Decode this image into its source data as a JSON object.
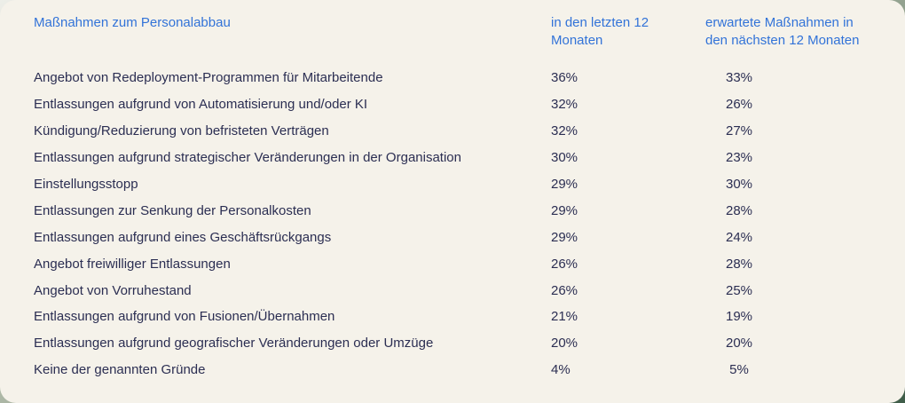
{
  "table": {
    "header": {
      "label": "Maßnahmen zum Personalabbau",
      "col1": "in den letzten 12 Monaten",
      "col2": "erwartete Maßnahmen in den nächsten 12 Monaten"
    }
  },
  "chart_data": {
    "type": "table",
    "title": "Maßnahmen zum Personalabbau",
    "unit": "%",
    "columns": [
      "Maßnahmen zum Personalabbau",
      "in den letzten 12 Monaten",
      "erwartete Maßnahmen in den nächsten 12 Monaten"
    ],
    "categories": [
      "Angebot von Redeployment-Programmen für Mitarbeitende",
      "Entlassungen aufgrund von Automatisierung und/oder KI",
      "Kündigung/Reduzierung von befristeten Verträgen",
      "Entlassungen aufgrund strategischer Veränderungen in der Organisation",
      "Einstellungsstopp",
      "Entlassungen zur Senkung der Personalkosten",
      "Entlassungen aufgrund eines Geschäftsrückgangs",
      "Angebot freiwilliger Entlassungen",
      "Angebot von Vorruhestand",
      "Entlassungen aufgrund von Fusionen/Übernahmen",
      "Entlassungen aufgrund geografischer Veränderungen oder Umzüge",
      "Keine der genannten Gründe"
    ],
    "series": [
      {
        "name": "in den letzten 12 Monaten",
        "values": [
          36,
          32,
          32,
          30,
          29,
          29,
          29,
          26,
          26,
          21,
          20,
          4
        ]
      },
      {
        "name": "erwartete Maßnahmen in den nächsten 12 Monaten",
        "values": [
          33,
          26,
          27,
          23,
          30,
          28,
          24,
          28,
          25,
          19,
          20,
          5
        ]
      }
    ]
  },
  "colors": {
    "card_background": "#f5f2ea",
    "outer_background": "#3f5d49",
    "header_blue": "#3273d8",
    "text_navy": "#2b2e52"
  }
}
